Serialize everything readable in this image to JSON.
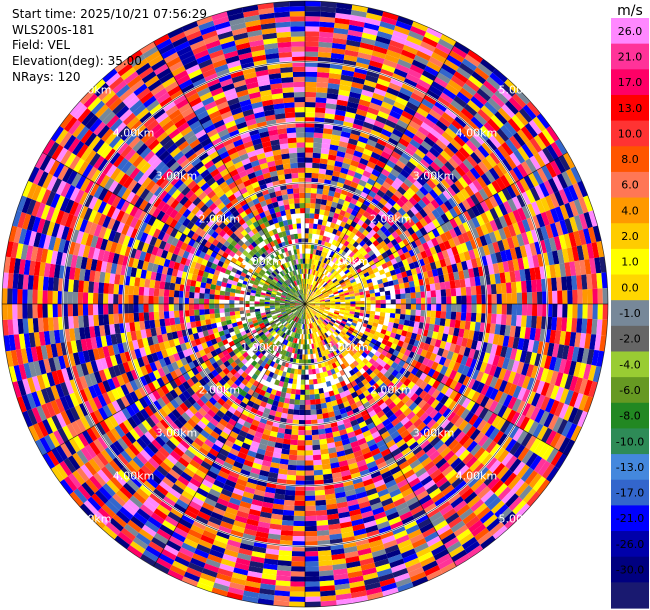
{
  "info": {
    "start_time": "Start time: 2025/10/21 07:56:29",
    "instrument": "WLS200s-181",
    "field": "Field: VEL",
    "elevation": "Elevation(deg): 35.00",
    "nrays": "NRays: 120"
  },
  "chart_data": {
    "type": "heatmap",
    "projection": "polar-ppi",
    "field": "VEL",
    "nrays": 120,
    "elevation_deg": 35.0,
    "range_rings_km": [
      1.0,
      2.0,
      3.0,
      4.0,
      5.0
    ],
    "ring_labels": [
      "1.00km",
      "2.00km",
      "3.00km",
      "4.00km",
      "5.00km"
    ],
    "ring_label_bearings_deg": [
      315,
      45,
      135,
      225
    ],
    "max_range_km": 5.0,
    "azimuth_lines_step_deg": 30,
    "colorbar": {
      "unit": "m/s",
      "vmin": -30.0,
      "vmax": 30.0,
      "ticks": [
        "26.0",
        "21.0",
        "17.0",
        "13.0",
        "10.0",
        "8.0",
        "6.0",
        "4.0",
        "2.0",
        "1.0",
        "0.0",
        "-1.0",
        "-2.0",
        "-4.0",
        "-6.0",
        "-8.0",
        "-10.0",
        "-13.0",
        "-17.0",
        "-21.0",
        "-26.0",
        "-30.0"
      ],
      "colors": [
        "#ff88ff",
        "#ff3399",
        "#ff0066",
        "#ff0000",
        "#ff3333",
        "#ff5500",
        "#ff7755",
        "#ff9900",
        "#ffcc00",
        "#ffff00",
        "#ffd700",
        "#778899",
        "#666666",
        "#99cc33",
        "#669922",
        "#228822",
        "#2e8b57",
        "#4488dd",
        "#3366cc",
        "#0000ff",
        "#0000aa",
        "#000080",
        "#191970"
      ]
    },
    "pattern": {
      "near_field_east": "positive (yellow)",
      "near_field_west": "negative (green)",
      "far_field": "noise across full range"
    }
  }
}
